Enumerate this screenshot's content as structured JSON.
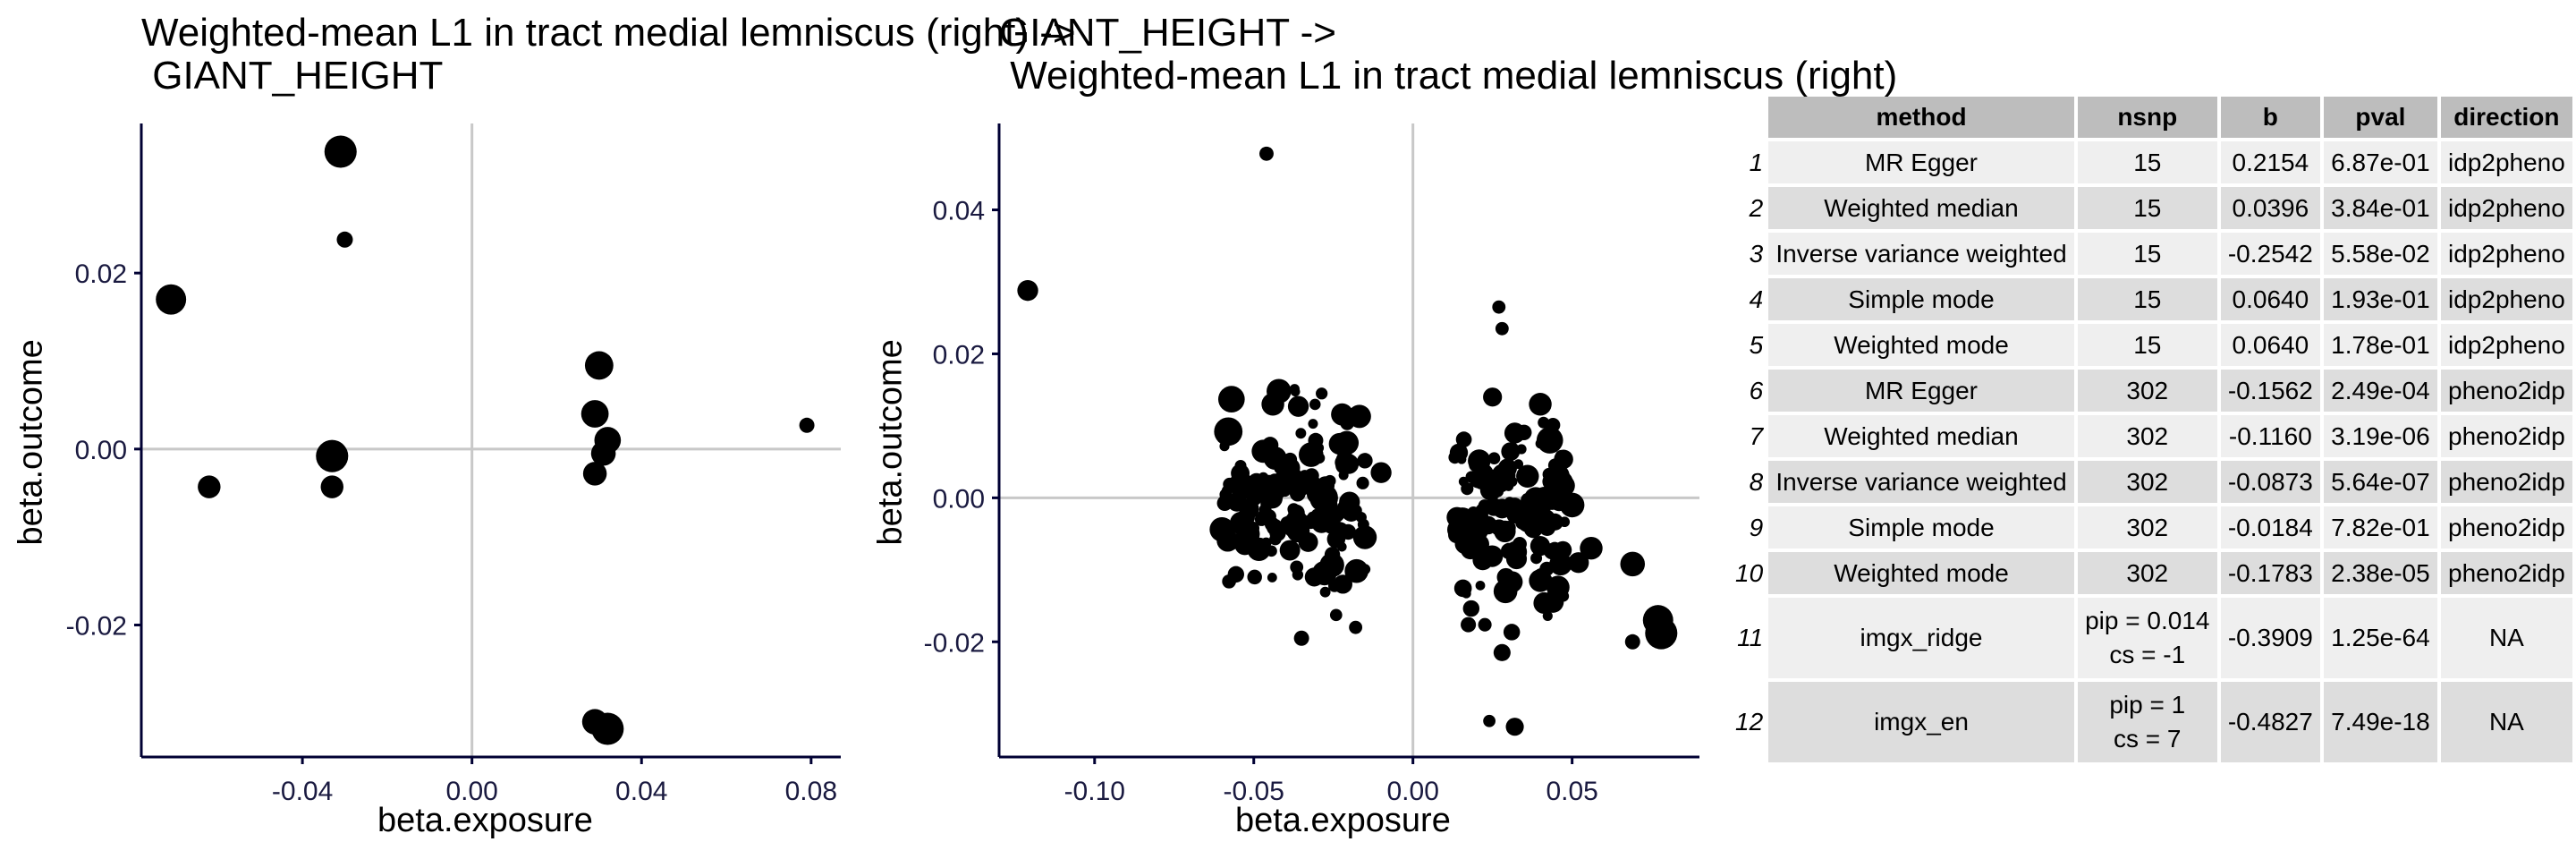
{
  "chart_data": [
    {
      "type": "scatter",
      "title": "Weighted-mean L1 in tract medial lemniscus (right) ->\n GIANT_HEIGHT",
      "xlabel": "beta.exposure",
      "ylabel": "beta.outcome",
      "xlim": [
        -0.078,
        0.087
      ],
      "ylim": [
        -0.035,
        0.037
      ],
      "xticks": [
        -0.04,
        0.0,
        0.04,
        0.08
      ],
      "xtick_labels": [
        "-0.04",
        "0.00",
        "0.04",
        "0.08"
      ],
      "yticks": [
        -0.02,
        0.0,
        0.02
      ],
      "ytick_labels": [
        "-0.02",
        "0.00",
        "0.02"
      ],
      "grid": false,
      "ref_lines": {
        "x": 0,
        "y": 0
      },
      "points": [
        {
          "x": -0.071,
          "y": 0.017,
          "size": 3.2
        },
        {
          "x": -0.062,
          "y": -0.0043,
          "size": 2.4
        },
        {
          "x": -0.031,
          "y": 0.0338,
          "size": 3.4
        },
        {
          "x": -0.03,
          "y": 0.0238,
          "size": 1.7
        },
        {
          "x": -0.033,
          "y": -0.0008,
          "size": 3.4
        },
        {
          "x": -0.033,
          "y": -0.0043,
          "size": 2.4
        },
        {
          "x": -0.032,
          "y": -0.004,
          "size": 1.0
        },
        {
          "x": 0.03,
          "y": 0.0095,
          "size": 3.0
        },
        {
          "x": 0.029,
          "y": 0.004,
          "size": 2.9
        },
        {
          "x": 0.032,
          "y": 0.001,
          "size": 2.8
        },
        {
          "x": 0.031,
          "y": -0.0005,
          "size": 2.6
        },
        {
          "x": 0.029,
          "y": -0.0028,
          "size": 2.5
        },
        {
          "x": 0.029,
          "y": -0.031,
          "size": 2.7
        },
        {
          "x": 0.032,
          "y": -0.0318,
          "size": 3.4
        },
        {
          "x": 0.079,
          "y": 0.0027,
          "size": 1.6
        }
      ]
    },
    {
      "type": "scatter",
      "title": "GIANT_HEIGHT ->\n Weighted-mean L1 in tract medial lemniscus (right)",
      "xlabel": "beta.exposure",
      "ylabel": "beta.outcome",
      "xlim": [
        -0.13,
        0.09
      ],
      "ylim": [
        -0.036,
        0.052
      ],
      "xticks": [
        -0.1,
        -0.05,
        0.0,
        0.05
      ],
      "xtick_labels": [
        "-0.10",
        "-0.05",
        "0.00",
        "0.05"
      ],
      "yticks": [
        -0.02,
        0.0,
        0.02,
        0.04
      ],
      "ytick_labels": [
        "-0.02",
        "0.00",
        "0.02",
        "0.04"
      ],
      "grid": false,
      "ref_lines": {
        "x": 0,
        "y": 0
      },
      "points": [
        {
          "x": -0.121,
          "y": 0.0288,
          "size": 2.2
        },
        {
          "x": -0.046,
          "y": 0.0478,
          "size": 1.5
        },
        {
          "x": -0.057,
          "y": 0.0137,
          "size": 2.8
        },
        {
          "x": -0.058,
          "y": 0.0092,
          "size": 3.0
        },
        {
          "x": -0.06,
          "y": -0.0044,
          "size": 2.6
        },
        {
          "x": -0.044,
          "y": 0.013,
          "size": 2.4
        },
        {
          "x": -0.036,
          "y": 0.0127,
          "size": 2.2
        },
        {
          "x": -0.032,
          "y": 0.006,
          "size": 2.6
        },
        {
          "x": -0.037,
          "y": -0.004,
          "size": 2.5
        },
        {
          "x": -0.028,
          "y": 0.0,
          "size": 3.0
        },
        {
          "x": -0.026,
          "y": -0.003,
          "size": 2.2
        },
        {
          "x": -0.023,
          "y": 0.0075,
          "size": 2.3
        },
        {
          "x": -0.031,
          "y": -0.011,
          "size": 2.0
        },
        {
          "x": -0.022,
          "y": -0.012,
          "size": 2.0
        },
        {
          "x": -0.035,
          "y": -0.0195,
          "size": 1.6
        },
        {
          "x": -0.018,
          "y": -0.018,
          "size": 1.4
        },
        {
          "x": -0.01,
          "y": 0.0035,
          "size": 2.2
        },
        {
          "x": 0.027,
          "y": 0.0265,
          "size": 1.4
        },
        {
          "x": 0.028,
          "y": 0.0235,
          "size": 1.4
        },
        {
          "x": 0.025,
          "y": 0.014,
          "size": 2.0
        },
        {
          "x": 0.04,
          "y": 0.013,
          "size": 2.4
        },
        {
          "x": 0.032,
          "y": 0.009,
          "size": 2.2
        },
        {
          "x": 0.043,
          "y": 0.008,
          "size": 2.8
        },
        {
          "x": 0.036,
          "y": 0.003,
          "size": 2.4
        },
        {
          "x": 0.045,
          "y": 0.002,
          "size": 2.6
        },
        {
          "x": 0.05,
          "y": -0.001,
          "size": 2.6
        },
        {
          "x": 0.056,
          "y": -0.007,
          "size": 2.4
        },
        {
          "x": 0.052,
          "y": -0.009,
          "size": 2.2
        },
        {
          "x": 0.04,
          "y": -0.0115,
          "size": 2.4
        },
        {
          "x": 0.069,
          "y": -0.0092,
          "size": 2.6
        },
        {
          "x": 0.069,
          "y": -0.02,
          "size": 1.6
        },
        {
          "x": 0.077,
          "y": -0.017,
          "size": 3.2
        },
        {
          "x": 0.078,
          "y": -0.0188,
          "size": 3.4
        },
        {
          "x": 0.028,
          "y": -0.0215,
          "size": 1.8
        },
        {
          "x": 0.024,
          "y": -0.031,
          "size": 1.3
        },
        {
          "x": 0.032,
          "y": -0.0318,
          "size": 1.9
        }
      ],
      "clusters": [
        {
          "x_range": [
            -0.06,
            -0.015
          ],
          "y_range": [
            -0.019,
            0.02
          ],
          "count": 150,
          "size_range": [
            1.0,
            2.6
          ]
        },
        {
          "x_range": [
            0.013,
            0.048
          ],
          "y_range": [
            -0.022,
            0.018
          ],
          "count": 140,
          "size_range": [
            1.0,
            2.6
          ]
        }
      ]
    },
    {
      "type": "table",
      "columns": [
        "method",
        "nsnp",
        "b",
        "pval",
        "direction"
      ],
      "rows": [
        {
          "idx": "1",
          "method": "MR Egger",
          "nsnp_l1": "15",
          "nsnp_l2": "",
          "b": "0.2154",
          "pval": "6.87e-01",
          "direction": "idp2pheno"
        },
        {
          "idx": "2",
          "method": "Weighted median",
          "nsnp_l1": "15",
          "nsnp_l2": "",
          "b": "0.0396",
          "pval": "3.84e-01",
          "direction": "idp2pheno"
        },
        {
          "idx": "3",
          "method": "Inverse variance weighted",
          "nsnp_l1": "15",
          "nsnp_l2": "",
          "b": "-0.2542",
          "pval": "5.58e-02",
          "direction": "idp2pheno"
        },
        {
          "idx": "4",
          "method": "Simple mode",
          "nsnp_l1": "15",
          "nsnp_l2": "",
          "b": "0.0640",
          "pval": "1.93e-01",
          "direction": "idp2pheno"
        },
        {
          "idx": "5",
          "method": "Weighted mode",
          "nsnp_l1": "15",
          "nsnp_l2": "",
          "b": "0.0640",
          "pval": "1.78e-01",
          "direction": "idp2pheno"
        },
        {
          "idx": "6",
          "method": "MR Egger",
          "nsnp_l1": "302",
          "nsnp_l2": "",
          "b": "-0.1562",
          "pval": "2.49e-04",
          "direction": "pheno2idp"
        },
        {
          "idx": "7",
          "method": "Weighted median",
          "nsnp_l1": "302",
          "nsnp_l2": "",
          "b": "-0.1160",
          "pval": "3.19e-06",
          "direction": "pheno2idp"
        },
        {
          "idx": "8",
          "method": "Inverse variance weighted",
          "nsnp_l1": "302",
          "nsnp_l2": "",
          "b": "-0.0873",
          "pval": "5.64e-07",
          "direction": "pheno2idp"
        },
        {
          "idx": "9",
          "method": "Simple mode",
          "nsnp_l1": "302",
          "nsnp_l2": "",
          "b": "-0.0184",
          "pval": "7.82e-01",
          "direction": "pheno2idp"
        },
        {
          "idx": "10",
          "method": "Weighted mode",
          "nsnp_l1": "302",
          "nsnp_l2": "",
          "b": "-0.1783",
          "pval": "2.38e-05",
          "direction": "pheno2idp"
        },
        {
          "idx": "11",
          "method": "imgx_ridge",
          "nsnp_l1": "pip = 0.014",
          "nsnp_l2": "cs = -1",
          "b": "-0.3909",
          "pval": "1.25e-64",
          "direction": "NA"
        },
        {
          "idx": "12",
          "method": "imgx_en",
          "nsnp_l1": "pip = 1",
          "nsnp_l2": "cs = 7",
          "b": "-0.4827",
          "pval": "7.49e-18",
          "direction": "NA"
        }
      ]
    }
  ]
}
